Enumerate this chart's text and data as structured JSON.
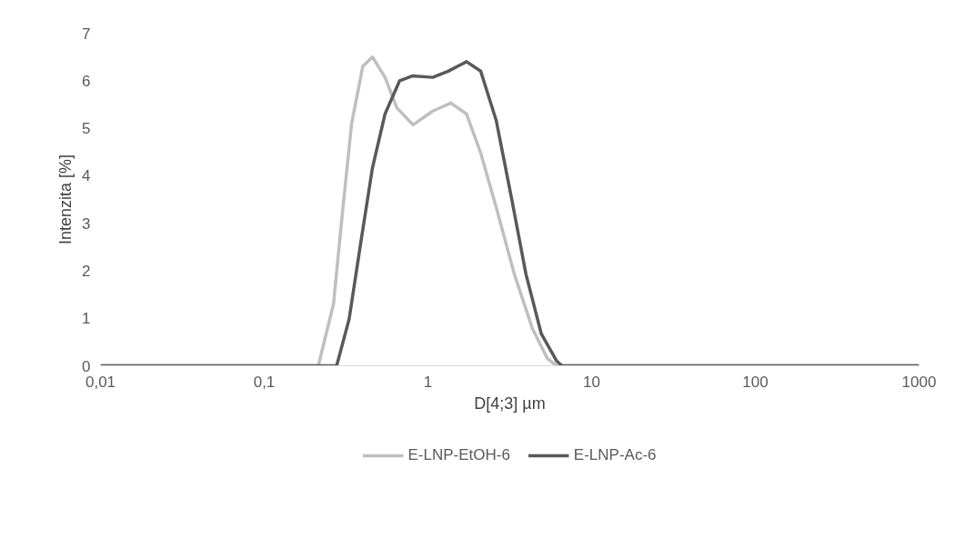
{
  "chart_data": {
    "type": "line",
    "xlabel": "D[4;3] µm",
    "ylabel": "Intenzita [%]",
    "log": "x",
    "grid": false,
    "legend": "bottom",
    "marker": "none",
    "line_style": "solid",
    "xlim": [
      0.01,
      1000
    ],
    "ylim": [
      0,
      7
    ],
    "xticks": [
      {
        "value": 0.01,
        "label": "0,01"
      },
      {
        "value": 0.1,
        "label": "0,1"
      },
      1,
      10,
      100,
      1000
    ],
    "yticks": [
      0,
      1,
      2,
      3,
      4,
      5,
      6,
      7
    ],
    "series": [
      {
        "name": "E-LNP-EtOH-6",
        "color": "#bfbfbf",
        "x": [
          0.01,
          0.1,
          0.214,
          0.265,
          0.3,
          0.342,
          0.4,
          0.458,
          0.547,
          0.646,
          0.811,
          1.07,
          1.38,
          1.72,
          2.1,
          2.61,
          3.37,
          4.35,
          5.37,
          6.12,
          10,
          100,
          1000
        ],
        "values": [
          0,
          0,
          0,
          1.3,
          3.2,
          5.1,
          6.3,
          6.5,
          6.07,
          5.43,
          5.07,
          5.36,
          5.53,
          5.3,
          4.48,
          3.34,
          1.93,
          0.78,
          0.15,
          0,
          0,
          0,
          0
        ]
      },
      {
        "name": "E-LNP-Ac-6",
        "color": "#595959",
        "x": [
          0.01,
          0.1,
          0.277,
          0.33,
          0.388,
          0.458,
          0.547,
          0.672,
          0.802,
          1.07,
          1.33,
          1.72,
          2.1,
          2.61,
          3.24,
          3.97,
          4.93,
          6.12,
          6.6,
          10,
          100,
          1000
        ],
        "values": [
          0,
          0,
          0,
          0.98,
          2.57,
          4.16,
          5.3,
          6.0,
          6.1,
          6.07,
          6.2,
          6.4,
          6.2,
          5.17,
          3.53,
          1.93,
          0.67,
          0.1,
          0,
          0,
          0,
          0
        ]
      }
    ]
  }
}
